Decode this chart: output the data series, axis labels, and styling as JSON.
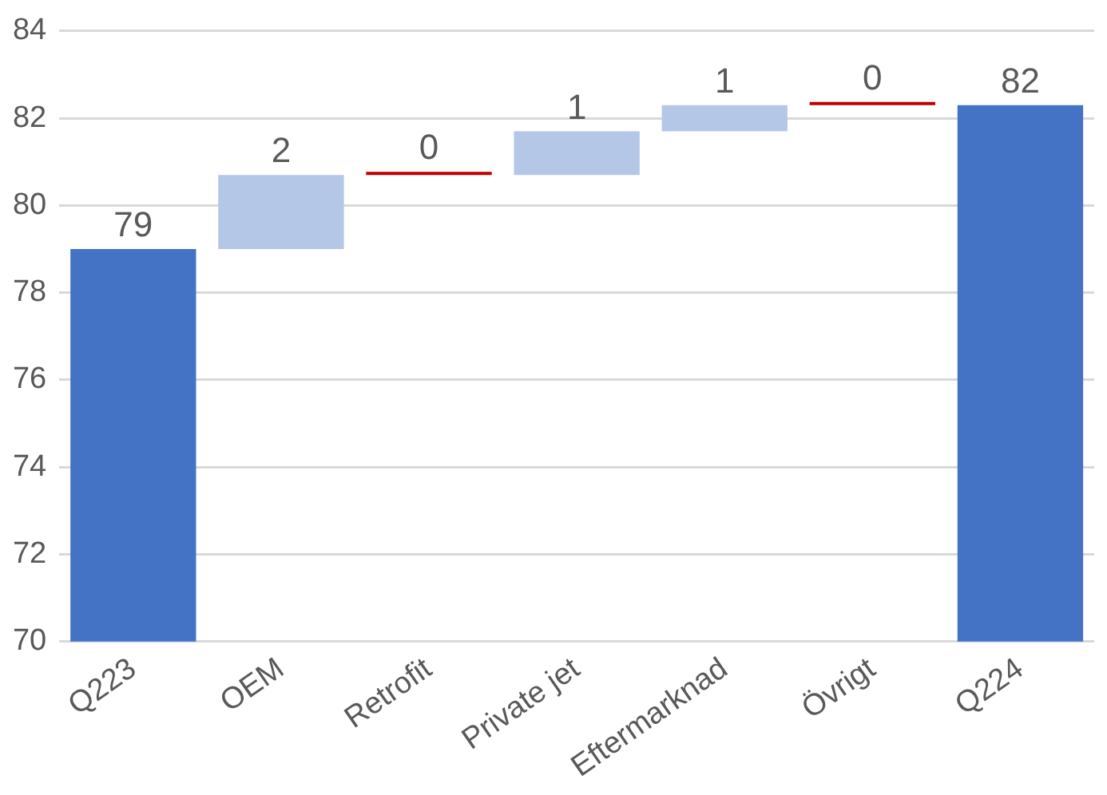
{
  "chart_data": {
    "type": "bar",
    "categories": [
      "Q223",
      "OEM",
      "Retrofit",
      "Private jet",
      "Eftermarknad",
      "Övrigt",
      "Q224"
    ],
    "values": [
      79.0,
      1.7,
      0,
      1.0,
      0.6,
      0,
      82.3
    ],
    "base": [
      null,
      79.0,
      80.7,
      80.7,
      81.7,
      82.3,
      null
    ],
    "colors": [
      "#4472c4",
      "#b4c7e7",
      "#c00000",
      "#b4c7e7",
      "#b4c7e7",
      "#c00000",
      "#4472c4"
    ],
    "value_labels": [
      "79",
      "2",
      "0",
      "1",
      "1",
      "0",
      "82"
    ],
    "ylim": [
      70,
      84
    ],
    "yticks": [
      70,
      72,
      74,
      76,
      78,
      80,
      82,
      84
    ],
    "grid": "y",
    "legend": false
  }
}
